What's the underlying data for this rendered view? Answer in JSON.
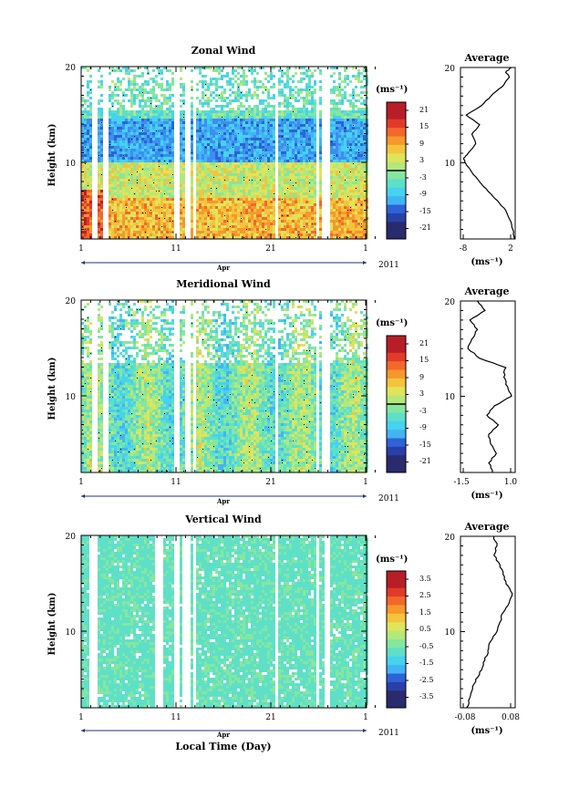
{
  "chart_data": [
    {
      "type": "heatmap",
      "title": "Zonal Wind",
      "ylabel": "Height (km)",
      "y_ticks": [
        "20",
        "10"
      ],
      "ylim": [
        2,
        20
      ],
      "x_ticks": [
        "1",
        "11",
        "21",
        "1"
      ],
      "x_minor_label": "Apr",
      "year_label": "2011",
      "colorbar": {
        "unit": "(ms⁻¹)",
        "tick_labels": [
          "21",
          "15",
          "9",
          "3",
          "-3",
          "-9",
          "-15",
          "-21"
        ],
        "range": [
          -24,
          24
        ],
        "zero_line_level": 0
      },
      "profile": {
        "title": "Average",
        "xlabel": "(ms⁻¹)",
        "x_ticks": [
          "-8",
          "2"
        ],
        "xlim": [
          -9,
          2.5
        ],
        "y_ticks": [
          "20",
          "10"
        ],
        "heights": [
          2,
          3,
          4,
          5,
          6,
          7,
          8,
          9,
          10,
          10.5,
          11,
          12,
          13,
          14,
          15,
          16,
          17,
          18,
          19,
          19.5,
          20
        ],
        "values": [
          2.3,
          2.0,
          1.4,
          0.5,
          -1.2,
          -3.2,
          -5.0,
          -6.6,
          -8.0,
          -8.3,
          -7.4,
          -5.8,
          -6.6,
          -5.0,
          -7.8,
          -4.6,
          -2.6,
          -0.2,
          1.3,
          0.5,
          1.7
        ]
      }
    },
    {
      "type": "heatmap",
      "title": "Meridional Wind",
      "ylabel": "Height (km)",
      "y_ticks": [
        "20",
        "10"
      ],
      "ylim": [
        2,
        20
      ],
      "x_ticks": [
        "1",
        "11",
        "21",
        "1"
      ],
      "x_minor_label": "Apr",
      "year_label": "2011",
      "colorbar": {
        "unit": "(ms⁻¹)",
        "tick_labels": [
          "21",
          "15",
          "9",
          "3",
          "-3",
          "-9",
          "-15",
          "-21"
        ],
        "range": [
          -24,
          24
        ],
        "zero_line_level": 0
      },
      "profile": {
        "title": "Average",
        "xlabel": "(ms⁻¹)",
        "x_ticks": [
          "-1.5",
          "1.0"
        ],
        "xlim": [
          -1.8,
          1.1
        ],
        "y_ticks": [
          "20",
          "10"
        ],
        "heights": [
          2,
          3,
          4,
          5,
          6,
          7,
          8,
          9,
          10,
          11,
          12,
          13,
          14,
          15,
          16,
          17,
          18,
          19,
          20
        ],
        "values": [
          -0.1,
          -0.3,
          0.1,
          -0.2,
          -0.3,
          0.2,
          -0.4,
          0.0,
          0.9,
          0.7,
          0.5,
          0.6,
          -0.8,
          -1.4,
          -1.2,
          -0.9,
          -1.3,
          -0.5,
          -0.9
        ]
      }
    },
    {
      "type": "heatmap",
      "title": "Vertical Wind",
      "ylabel": "Height (km)",
      "xlabel": "Local Time (Day)",
      "y_ticks": [
        "20",
        "10"
      ],
      "ylim": [
        2,
        20
      ],
      "x_ticks": [
        "1",
        "11",
        "21",
        "1"
      ],
      "x_minor_label": "Apr",
      "year_label": "2011",
      "colorbar": {
        "unit": "(ms⁻¹)",
        "tick_labels": [
          "3.5",
          "2.5",
          "1.5",
          "0.5",
          "-0.5",
          "-1.5",
          "-2.5",
          "-3.5"
        ],
        "range": [
          -4,
          4
        ]
      },
      "profile": {
        "title": "Average",
        "xlabel": "(ms⁻¹)",
        "x_ticks": [
          "-0.08",
          "0.08"
        ],
        "xlim": [
          -0.09,
          0.09
        ],
        "y_ticks": [
          "20",
          "10"
        ],
        "heights": [
          2,
          3,
          4,
          5,
          6,
          7,
          8,
          9,
          10,
          11,
          12,
          13,
          14,
          15,
          16,
          17,
          18,
          19,
          20
        ],
        "values": [
          -0.07,
          -0.06,
          -0.05,
          -0.04,
          -0.02,
          -0.01,
          0.0,
          0.01,
          0.03,
          0.04,
          0.05,
          0.07,
          0.08,
          0.06,
          0.05,
          0.04,
          0.02,
          0.03,
          0.02
        ]
      }
    }
  ]
}
